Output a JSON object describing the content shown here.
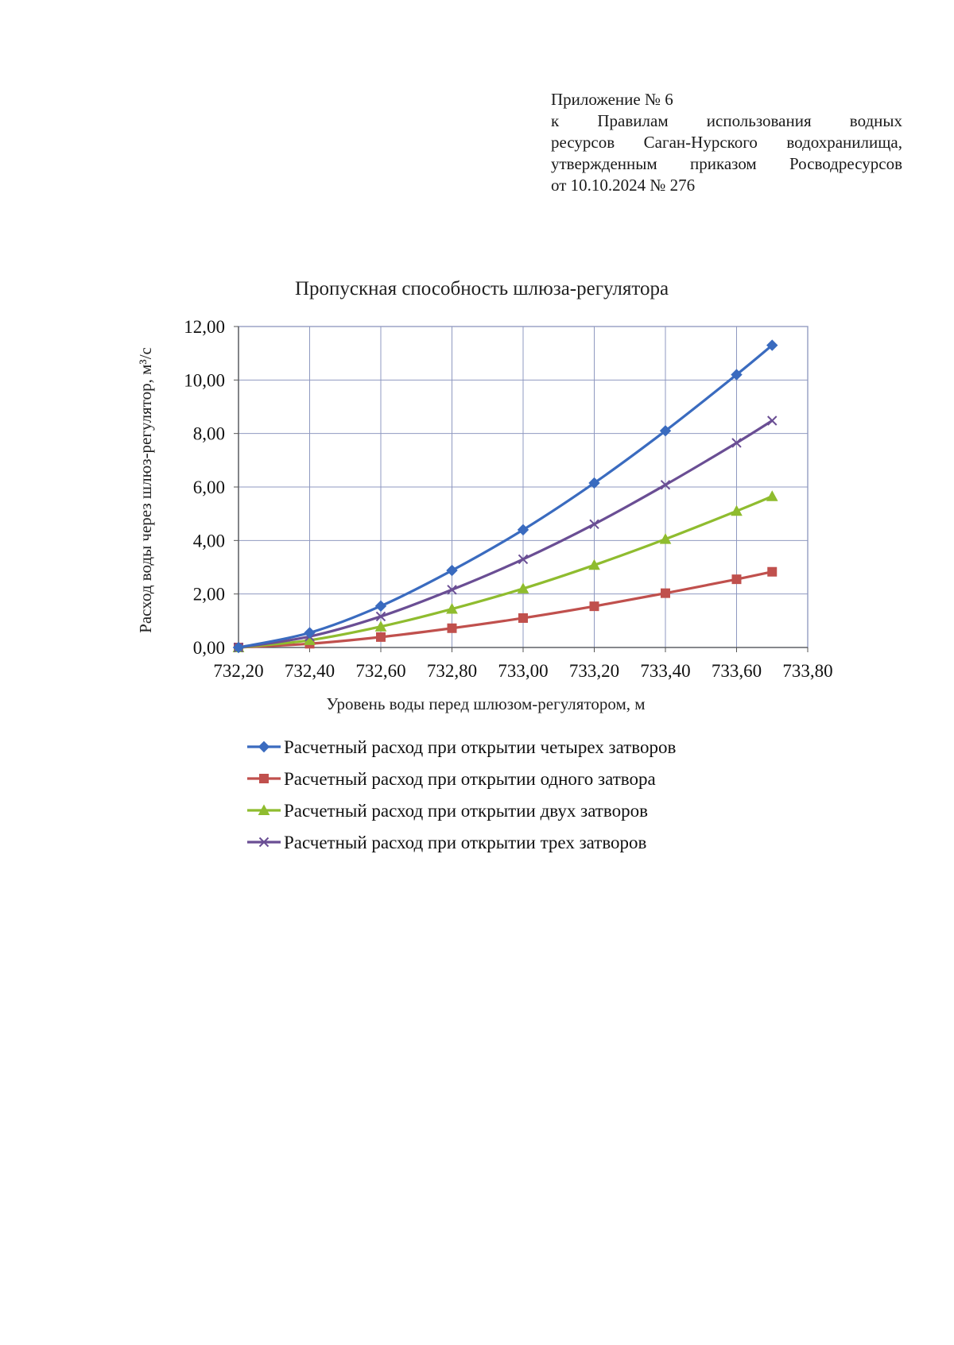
{
  "appendix": {
    "line1": "Приложение № 6",
    "line2": "к Правилам использования водных",
    "line3": "ресурсов Саган-Нурского водохранилища,",
    "line4": "утвержденным приказом Росводресурсов",
    "line5": "от 10.10.2024 № 276"
  },
  "chart_data": {
    "type": "line",
    "title": "Пропускная способность шлюза-регулятора",
    "xlabel": "Уровень воды перед шлюзом-регулятором, м",
    "ylabel": "Расход воды через шлюз-регулятор, м³/с",
    "xlim": [
      732.2,
      733.8
    ],
    "ylim": [
      0,
      12
    ],
    "x_ticks": [
      "732,20",
      "732,40",
      "732,60",
      "732,80",
      "733,00",
      "733,20",
      "733,40",
      "733,60",
      "733,80"
    ],
    "y_ticks": [
      "0,00",
      "2,00",
      "4,00",
      "6,00",
      "8,00",
      "10,00",
      "12,00"
    ],
    "grid": true,
    "legend_position": "bottom",
    "x": [
      732.2,
      732.4,
      732.6,
      732.8,
      733.0,
      733.2,
      733.4,
      733.6,
      733.7
    ],
    "series": [
      {
        "name": "Расчетный расход при открытии четырех затворов",
        "color": "#3a6bbf",
        "marker": "diamond",
        "values": [
          0.0,
          0.55,
          1.55,
          2.88,
          4.4,
          6.15,
          8.1,
          10.2,
          11.3
        ]
      },
      {
        "name": "Расчетный расход при открытии одного затвора",
        "color": "#c0504d",
        "marker": "square",
        "values": [
          0.0,
          0.14,
          0.39,
          0.72,
          1.1,
          1.54,
          2.03,
          2.55,
          2.83
        ]
      },
      {
        "name": "Расчетный расход при открытии двух затворов",
        "color": "#8fbc2f",
        "marker": "triangle",
        "values": [
          0.0,
          0.27,
          0.78,
          1.44,
          2.2,
          3.08,
          4.05,
          5.1,
          5.65
        ]
      },
      {
        "name": "Расчетный расход при открытии трех затворов",
        "color": "#6a4e94",
        "marker": "x",
        "values": [
          0.0,
          0.41,
          1.16,
          2.16,
          3.3,
          4.61,
          6.08,
          7.65,
          8.48
        ]
      }
    ]
  }
}
